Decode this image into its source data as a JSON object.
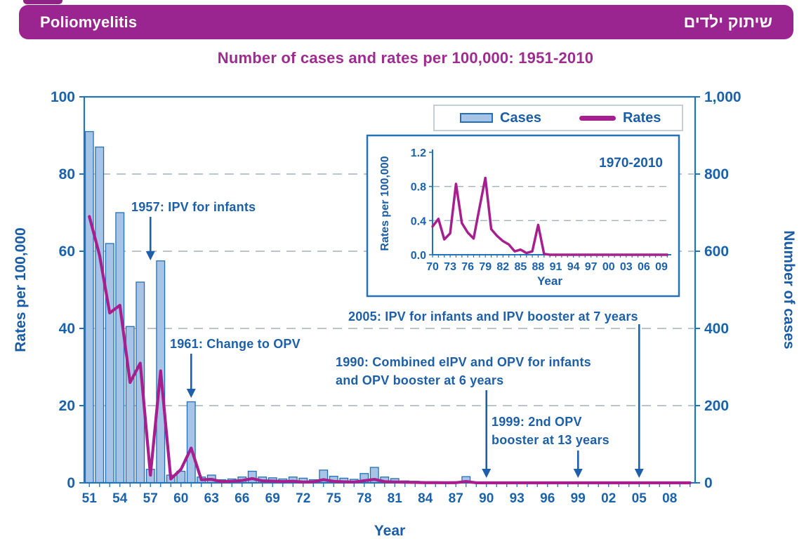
{
  "banner": {
    "title_en": "Poliomyelitis",
    "title_he": "שיתוק ילדים"
  },
  "page_title": "Number of cases and rates per 100,000: 1951-2010",
  "legend": {
    "cases_label": "Cases",
    "rates_label": "Rates"
  },
  "colors": {
    "banner_bg": "#9B2590",
    "title_text": "#9E2B90",
    "axis_blue": "#2273B8",
    "label_blue": "#1A62AC",
    "annotation_blue": "#1D5FA8",
    "bar_fill": "#A7C3E6",
    "bar_stroke": "#2470B4",
    "rates_line": "#A71F8E",
    "gridline": "#A3B2C0"
  },
  "chart_data": {
    "type": "bar",
    "title": "Number of cases and rates per 100,000: 1951-2010",
    "xlabel": "Year",
    "ylabel_left": "Rates per 100,000",
    "ylabel_right": "Number of cases",
    "ylim_left": [
      0,
      100
    ],
    "ylim_right": [
      0,
      1000
    ],
    "grid": "dashed horizontal at 20/40/60/80 (left scale)",
    "legend_position": "top-right inside plot",
    "categories": [
      1951,
      1952,
      1953,
      1954,
      1955,
      1956,
      1957,
      1958,
      1959,
      1960,
      1961,
      1962,
      1963,
      1964,
      1965,
      1966,
      1967,
      1968,
      1969,
      1970,
      1971,
      1972,
      1973,
      1974,
      1975,
      1976,
      1977,
      1978,
      1979,
      1980,
      1981,
      1982,
      1983,
      1984,
      1985,
      1986,
      1987,
      1988,
      1989,
      1990,
      1991,
      1992,
      1993,
      1994,
      1995,
      1996,
      1997,
      1998,
      1999,
      2000,
      2001,
      2002,
      2003,
      2004,
      2005,
      2006,
      2007,
      2008,
      2009,
      2010
    ],
    "series": [
      {
        "name": "Cases",
        "type": "bar",
        "axis": "right",
        "values": [
          910,
          870,
          620,
          700,
          405,
          520,
          35,
          575,
          20,
          30,
          210,
          15,
          20,
          8,
          10,
          15,
          30,
          15,
          13,
          10,
          15,
          12,
          8,
          33,
          17,
          12,
          9,
          24,
          40,
          15,
          11,
          5,
          4,
          2,
          2,
          1,
          2,
          16,
          0,
          0,
          0,
          0,
          0,
          0,
          0,
          0,
          0,
          0,
          0,
          0,
          0,
          0,
          0,
          0,
          0,
          0,
          0,
          0,
          0,
          0
        ]
      },
      {
        "name": "Rates",
        "type": "line",
        "axis": "left",
        "values": [
          69,
          59,
          44,
          46,
          26,
          31,
          2,
          29,
          1,
          3.5,
          9,
          0.8,
          0.9,
          0.3,
          0.4,
          0.6,
          1.1,
          0.5,
          0.45,
          0.33,
          0.42,
          0.18,
          0.25,
          0.83,
          0.37,
          0.26,
          0.19,
          0.55,
          0.9,
          0.3,
          0.22,
          0.16,
          0.12,
          0.04,
          0.06,
          0.02,
          0.04,
          0.35,
          0.01,
          0,
          0,
          0,
          0,
          0,
          0,
          0,
          0,
          0,
          0,
          0,
          0,
          0,
          0,
          0,
          0,
          0,
          0,
          0,
          0,
          0
        ]
      }
    ],
    "axis_ticks_left": {
      "values": [
        0,
        20,
        40,
        60,
        80,
        100
      ],
      "labels": [
        "0",
        "20",
        "40",
        "60",
        "80",
        "100"
      ]
    },
    "axis_ticks_right": {
      "values": [
        0,
        200,
        400,
        600,
        800,
        1000
      ],
      "labels": [
        "0",
        "200",
        "400",
        "600",
        "800",
        "1,000"
      ]
    },
    "axis_ticks_x": {
      "label_every_years": 3,
      "labels": [
        "51",
        "54",
        "57",
        "60",
        "63",
        "66",
        "69",
        "72",
        "75",
        "78",
        "81",
        "84",
        "87",
        "90",
        "93",
        "96",
        "99",
        "02",
        "05",
        "08"
      ]
    },
    "annotations": [
      {
        "year": 1957,
        "lines": [
          "1957: IPV for infants"
        ]
      },
      {
        "year": 1961,
        "lines": [
          "1961: Change to OPV"
        ]
      },
      {
        "year": 1990,
        "lines": [
          "1990: Combined eIPV and OPV for infants",
          "and OPV booster at 6 years"
        ]
      },
      {
        "year": 1999,
        "lines": [
          "1999: 2nd OPV",
          "booster at 13 years"
        ]
      },
      {
        "year": 2005,
        "lines": [
          "2005: IPV for infants and IPV booster at 7 years"
        ]
      }
    ]
  },
  "inset": {
    "range_label": "1970-2010",
    "ylabel": "Rates per 100,000",
    "xlabel": "Year",
    "start_year": 1970,
    "end_year": 2010,
    "ylim": [
      0,
      1.2
    ],
    "yticks": {
      "values": [
        0,
        0.4,
        0.8,
        1.2
      ],
      "labels": [
        "0.0",
        "0.4",
        "0.8",
        "1.2"
      ]
    },
    "xticks": {
      "label_every_years": 3,
      "labels": [
        "70",
        "73",
        "76",
        "79",
        "82",
        "85",
        "88",
        "91",
        "94",
        "97",
        "00",
        "03",
        "06",
        "09"
      ]
    },
    "note": "rates series 1970-2010 identical to main chart Rates series"
  }
}
